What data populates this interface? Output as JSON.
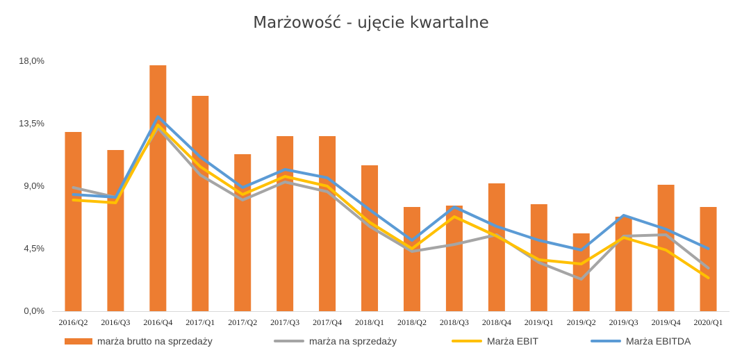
{
  "chart_data": {
    "type": "bar",
    "title": "Marżowość - ujęcie kwartalne",
    "xlabel": "",
    "ylabel": "",
    "ylim": [
      0,
      18
    ],
    "yticks": [
      "0,0%",
      "4,5%",
      "9,0%",
      "13,5%",
      "18,0%"
    ],
    "ytick_values": [
      0,
      4.5,
      9,
      13.5,
      18
    ],
    "grid": false,
    "legend_position": "bottom",
    "categories": [
      "2016/Q2",
      "2016/Q3",
      "2016/Q4",
      "2017/Q1",
      "2017/Q2",
      "2017/Q3",
      "2017/Q4",
      "2018/Q1",
      "2018/Q2",
      "2018/Q3",
      "2018/Q4",
      "2019/Q1",
      "2019/Q2",
      "2019/Q3",
      "2019/Q4",
      "2020/Q1"
    ],
    "series": [
      {
        "name": "marża brutto na sprzedaży",
        "kind": "bar",
        "color": "#ED7D31",
        "values": [
          12.9,
          11.6,
          17.7,
          15.5,
          11.3,
          12.6,
          12.6,
          10.5,
          7.5,
          7.6,
          9.2,
          7.7,
          5.6,
          6.8,
          9.1,
          7.5
        ]
      },
      {
        "name": "marża na sprzedaży",
        "kind": "line",
        "color": "#A5A5A5",
        "values": [
          8.9,
          8.2,
          13.2,
          9.8,
          8.0,
          9.3,
          8.6,
          6.1,
          4.3,
          4.8,
          5.5,
          3.5,
          2.3,
          5.4,
          5.5,
          3.1
        ]
      },
      {
        "name": "Marża EBIT",
        "kind": "line",
        "color": "#FFC000",
        "values": [
          8.0,
          7.8,
          13.4,
          10.4,
          8.4,
          9.7,
          9.0,
          6.4,
          4.5,
          6.8,
          5.4,
          3.7,
          3.4,
          5.3,
          4.4,
          2.4
        ]
      },
      {
        "name": "Marża EBITDA",
        "kind": "line",
        "color": "#5B9BD5",
        "values": [
          8.4,
          8.2,
          14.0,
          11.1,
          8.9,
          10.2,
          9.6,
          7.3,
          5.1,
          7.5,
          6.1,
          5.1,
          4.4,
          6.9,
          5.9,
          4.5
        ]
      }
    ]
  }
}
